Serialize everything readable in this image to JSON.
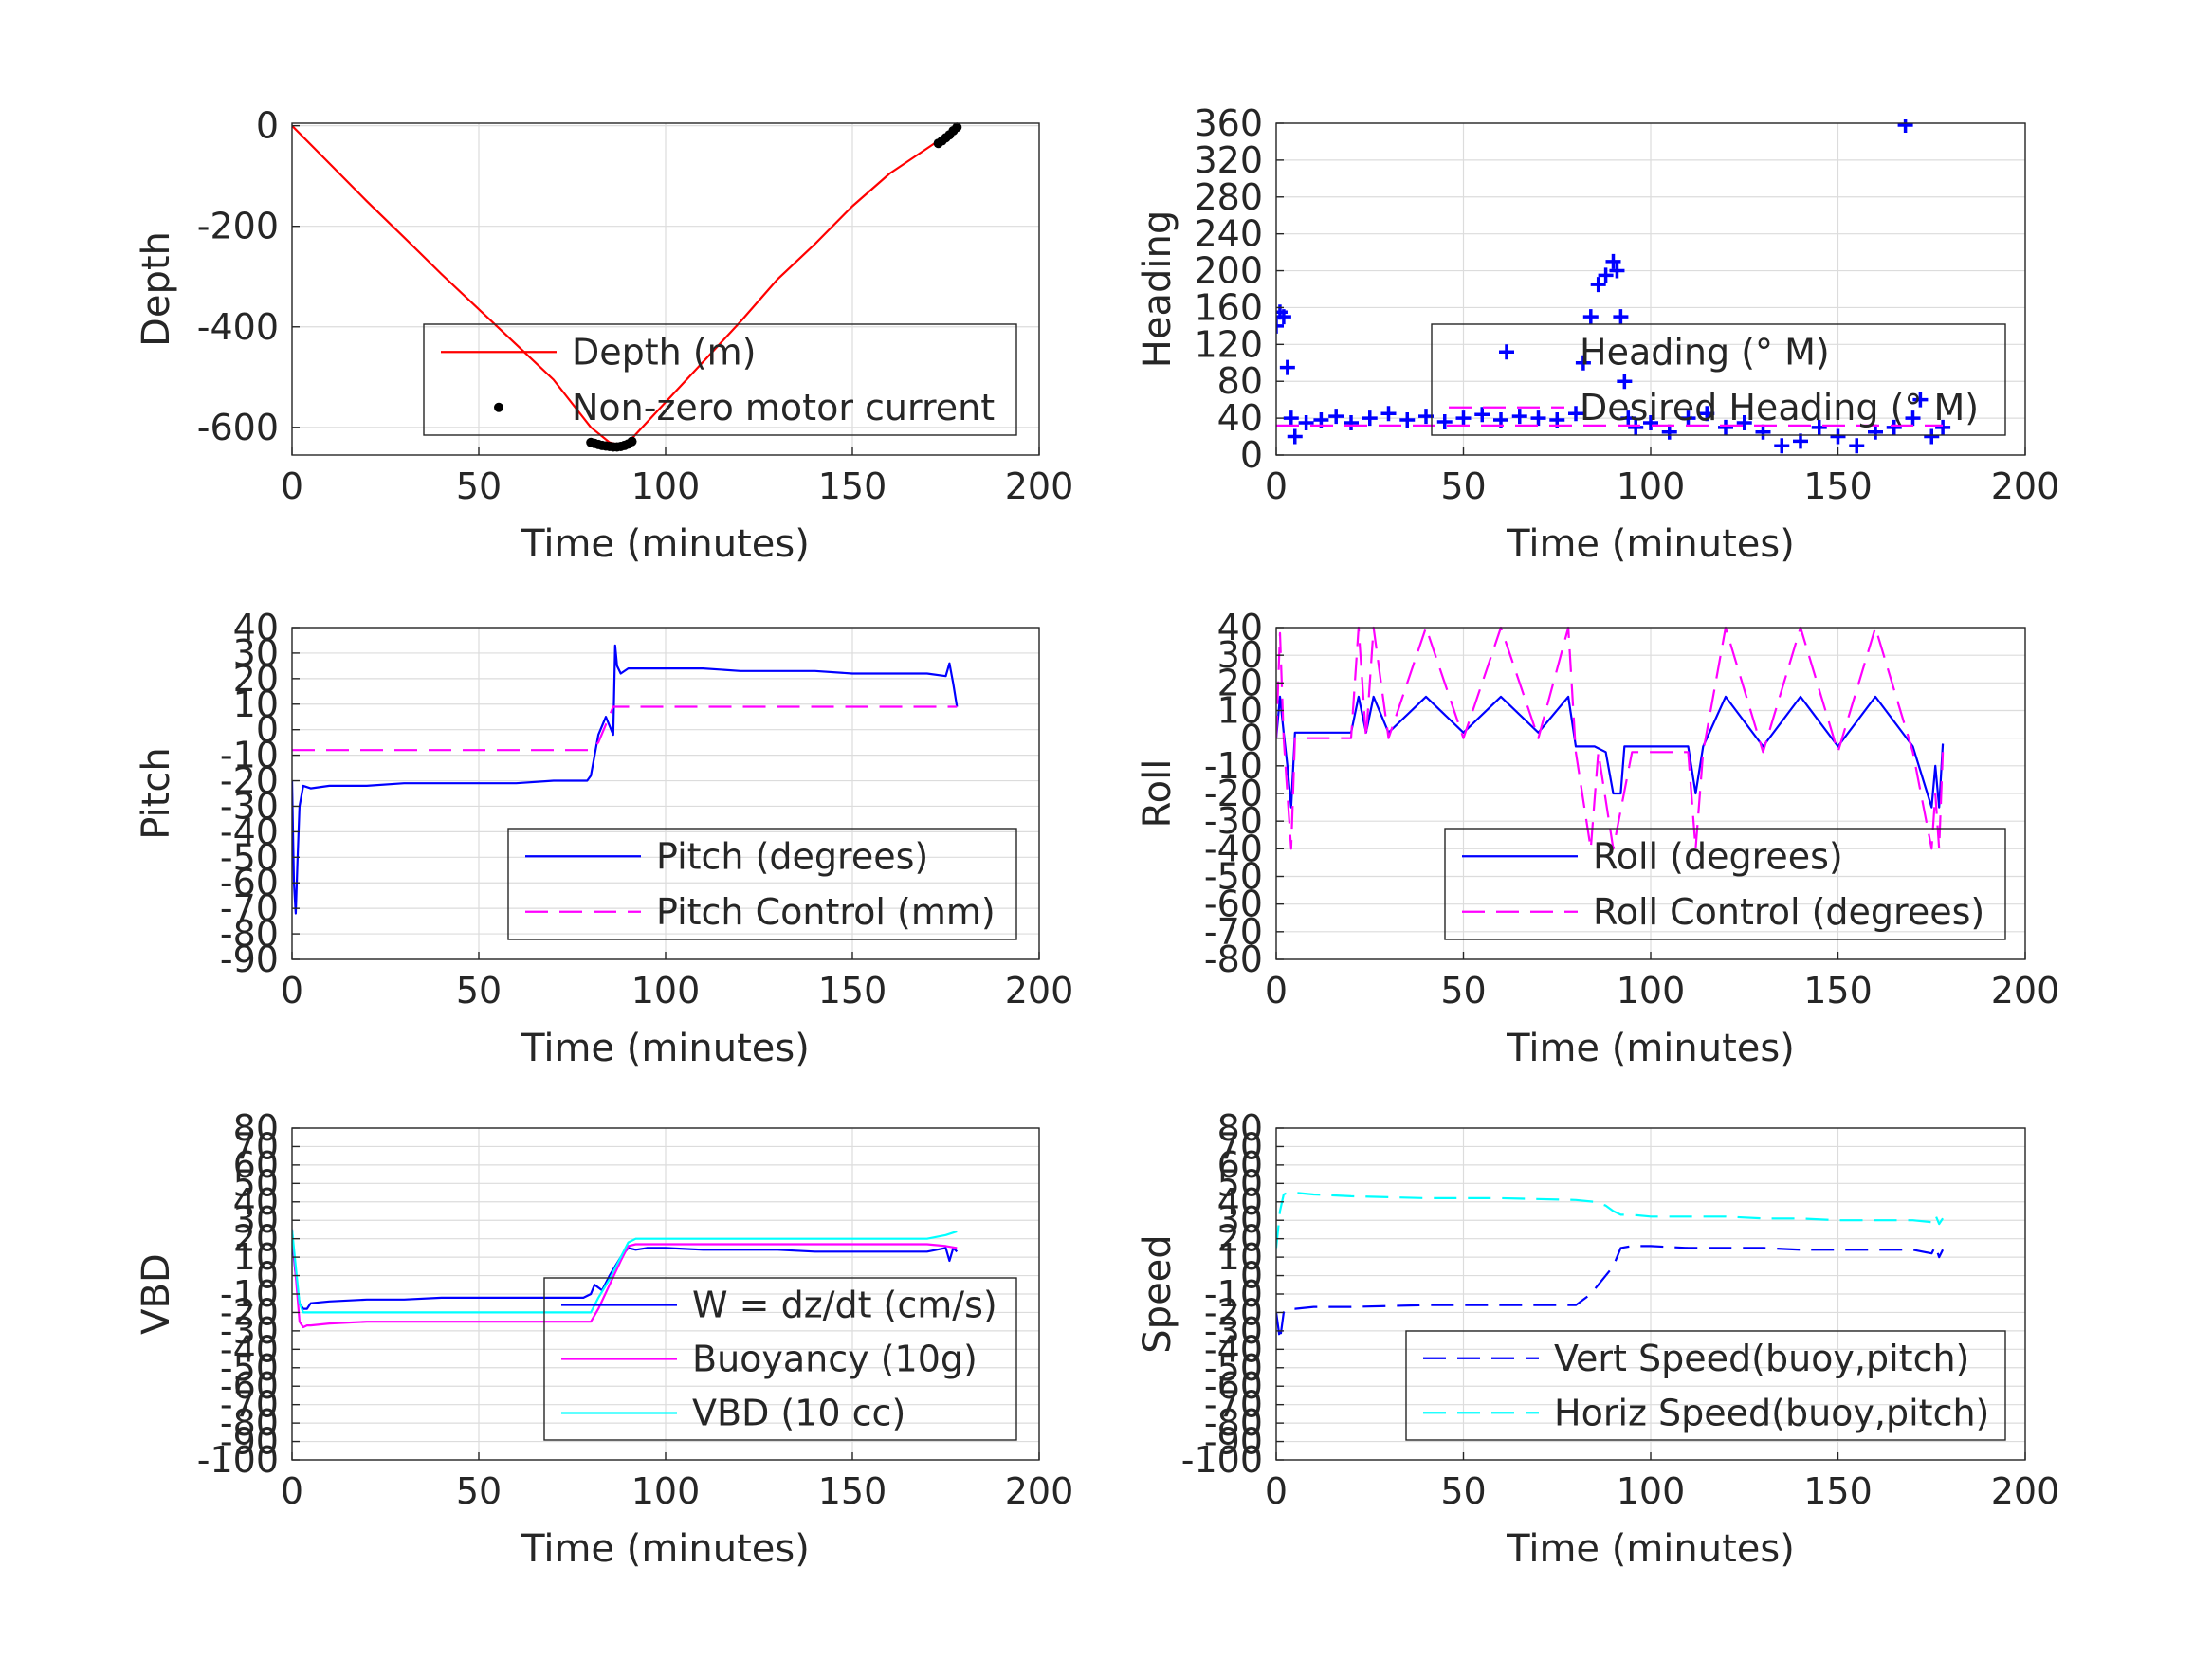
{
  "chart_data": [
    {
      "type": "line",
      "xlabel": "Time (minutes)",
      "ylabel": "Depth",
      "xlim": [
        0,
        200
      ],
      "ylim": [
        -655,
        5
      ],
      "xticks": [
        0,
        50,
        100,
        150,
        200
      ],
      "yticks": [
        0,
        -200,
        -400,
        -600
      ],
      "xtick_labels": [
        "0",
        "50",
        "100",
        "150",
        "200"
      ],
      "ytick_labels": [
        "0",
        "-200",
        "-400",
        "-600"
      ],
      "grid": true,
      "legend": {
        "placement": "lower-right",
        "entries": [
          "Depth (m)",
          "Non-zero motor current"
        ]
      },
      "series": [
        {
          "name": "Depth (m)",
          "style": "line",
          "color": "#ff0000",
          "x": [
            0,
            10,
            20,
            30,
            40,
            50,
            60,
            70,
            80,
            85,
            88,
            90,
            95,
            100,
            110,
            120,
            130,
            140,
            150,
            160,
            170,
            176,
            178
          ],
          "y": [
            0,
            -75,
            -150,
            -222,
            -295,
            -365,
            -435,
            -505,
            -600,
            -630,
            -635,
            -630,
            -590,
            -550,
            -470,
            -390,
            -305,
            -235,
            -160,
            -95,
            -45,
            -15,
            0
          ]
        },
        {
          "name": "Non-zero motor current",
          "style": "dots",
          "color": "#000000",
          "x": [
            80,
            81,
            82,
            83,
            84,
            85,
            86,
            87,
            88,
            89,
            90,
            91,
            173,
            174,
            175,
            176,
            177,
            178
          ],
          "y": [
            -630,
            -632,
            -634,
            -636,
            -637,
            -638,
            -639,
            -639,
            -638,
            -636,
            -633,
            -628,
            -35,
            -30,
            -24,
            -18,
            -10,
            -3
          ]
        }
      ]
    },
    {
      "type": "scatter",
      "xlabel": "Time (minutes)",
      "ylabel": "Heading",
      "xlim": [
        0,
        200
      ],
      "ylim": [
        0,
        360
      ],
      "xticks": [
        0,
        50,
        100,
        150,
        200
      ],
      "yticks": [
        0,
        40,
        80,
        120,
        160,
        200,
        240,
        280,
        320,
        360
      ],
      "xtick_labels": [
        "0",
        "50",
        "100",
        "150",
        "200"
      ],
      "ytick_labels": [
        "0",
        "40",
        "80",
        "120",
        "160",
        "200",
        "240",
        "280",
        "320",
        "360"
      ],
      "grid": true,
      "legend": {
        "placement": "lower-right",
        "entries": [
          "Heading (° M)",
          "Desired Heading (° M)"
        ]
      },
      "series": [
        {
          "name": "Heading (° M)",
          "style": "plus",
          "color": "#0000ff",
          "x": [
            0,
            1,
            2,
            3,
            4,
            5,
            8,
            12,
            16,
            20,
            25,
            30,
            35,
            40,
            45,
            50,
            55,
            60,
            65,
            70,
            75,
            80,
            82,
            84,
            86,
            88,
            90,
            91,
            92,
            93,
            94,
            96,
            100,
            105,
            110,
            115,
            120,
            125,
            130,
            135,
            140,
            145,
            150,
            155,
            160,
            165,
            168,
            170,
            172,
            175,
            178
          ],
          "y": [
            140,
            155,
            150,
            95,
            40,
            20,
            35,
            38,
            42,
            35,
            40,
            45,
            38,
            42,
            36,
            40,
            44,
            38,
            42,
            40,
            38,
            45,
            100,
            150,
            185,
            195,
            210,
            200,
            150,
            80,
            40,
            30,
            35,
            25,
            40,
            45,
            30,
            35,
            25,
            10,
            15,
            30,
            20,
            10,
            25,
            30,
            358,
            40,
            60,
            20,
            30
          ]
        },
        {
          "name": "Desired Heading (° M)",
          "style": "dashed",
          "color": "#ff00ff",
          "x": [
            0,
            178
          ],
          "y": [
            32,
            32
          ]
        }
      ]
    },
    {
      "type": "line",
      "xlabel": "Time (minutes)",
      "ylabel": "Pitch",
      "xlim": [
        0,
        200
      ],
      "ylim": [
        -90,
        40
      ],
      "xticks": [
        0,
        50,
        100,
        150,
        200
      ],
      "yticks": [
        40,
        30,
        20,
        10,
        0,
        -10,
        -20,
        -30,
        -40,
        -50,
        -60,
        -70,
        -80,
        -90
      ],
      "xtick_labels": [
        "0",
        "50",
        "100",
        "150",
        "200"
      ],
      "ytick_labels": [
        "40",
        "30",
        "20",
        "10",
        "0",
        "-10",
        "-20",
        "-30",
        "-40",
        "-50",
        "-60",
        "-70",
        "-80",
        "-90"
      ],
      "grid": true,
      "legend": {
        "placement": "lower-right",
        "entries": [
          "Pitch (degrees)",
          "Pitch Control (mm)"
        ]
      },
      "series": [
        {
          "name": "Pitch (degrees)",
          "style": "line",
          "color": "#0000ff",
          "x": [
            0,
            0.5,
            1,
            1.5,
            2,
            3,
            5,
            10,
            20,
            30,
            40,
            50,
            60,
            70,
            79,
            80,
            82,
            84,
            86,
            86.5,
            87,
            88,
            90,
            95,
            100,
            110,
            120,
            130,
            140,
            150,
            160,
            170,
            175,
            176,
            177,
            178
          ],
          "y": [
            -20,
            -60,
            -72,
            -50,
            -30,
            -22,
            -23,
            -22,
            -22,
            -21,
            -21,
            -21,
            -21,
            -20,
            -20,
            -18,
            -2,
            5,
            -2,
            33,
            25,
            22,
            24,
            24,
            24,
            24,
            23,
            23,
            23,
            22,
            22,
            22,
            21,
            26,
            18,
            9
          ]
        },
        {
          "name": "Pitch Control (mm)",
          "style": "dashed",
          "color": "#ff00ff",
          "x": [
            0,
            80,
            82,
            84,
            86,
            87,
            88,
            178
          ],
          "y": [
            -8,
            -8,
            -5,
            2,
            9,
            9,
            9,
            9
          ]
        }
      ]
    },
    {
      "type": "line",
      "xlabel": "Time (minutes)",
      "ylabel": "Roll",
      "xlim": [
        0,
        200
      ],
      "ylim": [
        -80,
        40
      ],
      "xticks": [
        0,
        50,
        100,
        150,
        200
      ],
      "yticks": [
        40,
        30,
        20,
        10,
        0,
        -10,
        -20,
        -30,
        -40,
        -50,
        -60,
        -70,
        -80
      ],
      "xtick_labels": [
        "0",
        "50",
        "100",
        "150",
        "200"
      ],
      "ytick_labels": [
        "40",
        "30",
        "20",
        "10",
        "0",
        "-10",
        "-20",
        "-30",
        "-40",
        "-50",
        "-60",
        "-70",
        "-80"
      ],
      "grid": true,
      "legend": {
        "placement": "lower-right",
        "entries": [
          "Roll (degrees)",
          "Roll Control (degrees)"
        ]
      },
      "series": [
        {
          "name": "Roll (degrees)",
          "style": "line",
          "color": "#0000ff",
          "x": [
            0,
            1,
            2,
            3,
            4,
            5,
            10,
            20,
            22,
            24,
            26,
            30,
            40,
            50,
            60,
            70,
            78,
            80,
            85,
            88,
            90,
            92,
            93,
            95,
            100,
            110,
            112,
            114,
            120,
            130,
            140,
            150,
            160,
            170,
            175,
            176,
            177,
            178
          ],
          "y": [
            0,
            15,
            2,
            -10,
            -25,
            2,
            2,
            2,
            15,
            2,
            15,
            2,
            15,
            2,
            15,
            2,
            15,
            -3,
            -3,
            -5,
            -20,
            -20,
            -3,
            -3,
            -3,
            -3,
            -20,
            -3,
            15,
            -3,
            15,
            -3,
            15,
            -3,
            -25,
            -10,
            -25,
            -2
          ]
        },
        {
          "name": "Roll Control (degrees)",
          "style": "dashed",
          "color": "#ff00ff",
          "x": [
            0,
            1,
            2,
            3,
            4,
            5,
            10,
            20,
            22,
            24,
            26,
            30,
            40,
            50,
            60,
            70,
            78,
            80,
            84,
            86,
            90,
            95,
            100,
            110,
            112,
            114,
            120,
            130,
            140,
            150,
            160,
            170,
            175,
            176,
            177,
            178
          ],
          "y": [
            0,
            38,
            0,
            -20,
            -40,
            0,
            0,
            0,
            40,
            0,
            40,
            0,
            40,
            0,
            40,
            0,
            40,
            -5,
            -40,
            -5,
            -40,
            -5,
            -5,
            -5,
            -40,
            -5,
            40,
            -5,
            40,
            -5,
            40,
            -5,
            -40,
            -20,
            -40,
            -5
          ]
        }
      ]
    },
    {
      "type": "line",
      "xlabel": "Time (minutes)",
      "ylabel": "VBD",
      "xlim": [
        0,
        200
      ],
      "ylim": [
        -100,
        80
      ],
      "xticks": [
        0,
        50,
        100,
        150,
        200
      ],
      "yticks": [
        80,
        70,
        60,
        50,
        40,
        30,
        20,
        10,
        0,
        -10,
        -20,
        -30,
        -40,
        -50,
        -60,
        -70,
        -80,
        -90,
        -100
      ],
      "xtick_labels": [
        "0",
        "50",
        "100",
        "150",
        "200"
      ],
      "ytick_labels": [
        "80",
        "70",
        "60",
        "50",
        "40",
        "30",
        "20",
        "10",
        "0",
        "-10",
        "-20",
        "-30",
        "-40",
        "-50",
        "-60",
        "-70",
        "-80",
        "-90",
        "-100"
      ],
      "grid": true,
      "legend": {
        "placement": "lower-right",
        "entries": [
          "W = dz/dt (cm/s)",
          "Buoyancy (10g)",
          "VBD (10 cc)"
        ]
      },
      "series": [
        {
          "name": "W = dz/dt (cm/s)",
          "style": "line",
          "color": "#0000ff",
          "x": [
            0,
            1,
            2,
            3,
            4,
            5,
            10,
            20,
            30,
            40,
            50,
            60,
            70,
            78,
            80,
            81,
            83,
            85,
            88,
            90,
            92,
            95,
            100,
            110,
            120,
            130,
            140,
            150,
            160,
            170,
            175,
            176,
            177,
            178
          ],
          "y": [
            20,
            0,
            -15,
            -18,
            -18,
            -15,
            -14,
            -13,
            -13,
            -12,
            -12,
            -12,
            -12,
            -12,
            -10,
            -5,
            -8,
            0,
            10,
            15,
            14,
            15,
            15,
            14,
            14,
            14,
            13,
            13,
            13,
            13,
            15,
            8,
            15,
            13
          ]
        },
        {
          "name": "Buoyancy (10g)",
          "style": "line",
          "color": "#ff00ff",
          "x": [
            0,
            1,
            2,
            3,
            4,
            5,
            10,
            20,
            30,
            40,
            50,
            60,
            70,
            80,
            82,
            85,
            88,
            90,
            92,
            95,
            100,
            120,
            140,
            160,
            170,
            175,
            178
          ],
          "y": [
            25,
            0,
            -25,
            -28,
            -27,
            -27,
            -26,
            -25,
            -25,
            -25,
            -25,
            -25,
            -25,
            -25,
            -18,
            -5,
            8,
            16,
            17,
            17,
            17,
            17,
            17,
            17,
            17,
            16,
            15
          ]
        },
        {
          "name": "VBD (10 cc)",
          "style": "line",
          "color": "#00ffff",
          "x": [
            0,
            1,
            2,
            3,
            5,
            10,
            20,
            40,
            60,
            78,
            80,
            82,
            85,
            88,
            90,
            92,
            95,
            100,
            120,
            140,
            160,
            170,
            175,
            178
          ],
          "y": [
            25,
            5,
            -15,
            -20,
            -20,
            -20,
            -20,
            -20,
            -20,
            -20,
            -20,
            -12,
            -2,
            10,
            18,
            20,
            20,
            20,
            20,
            20,
            20,
            20,
            22,
            24
          ]
        }
      ]
    },
    {
      "type": "line",
      "xlabel": "Time (minutes)",
      "ylabel": "Speed",
      "xlim": [
        0,
        200
      ],
      "ylim": [
        -100,
        80
      ],
      "xticks": [
        0,
        50,
        100,
        150,
        200
      ],
      "yticks": [
        80,
        70,
        60,
        50,
        40,
        30,
        20,
        10,
        0,
        -10,
        -20,
        -30,
        -40,
        -50,
        -60,
        -70,
        -80,
        -90,
        -100
      ],
      "xtick_labels": [
        "0",
        "50",
        "100",
        "150",
        "200"
      ],
      "ytick_labels": [
        "80",
        "70",
        "60",
        "50",
        "40",
        "30",
        "20",
        "10",
        "0",
        "-10",
        "-20",
        "-30",
        "-40",
        "-50",
        "-60",
        "-70",
        "-80",
        "-90",
        "-100"
      ],
      "grid": true,
      "legend": {
        "placement": "lower-right",
        "entries": [
          "Vert Speed(buoy,pitch)",
          "Horiz Speed(buoy,pitch)"
        ]
      },
      "series": [
        {
          "name": "Vert Speed(buoy,pitch)",
          "style": "dashed",
          "color": "#0000ff",
          "x": [
            0,
            1,
            2,
            3,
            5,
            10,
            20,
            40,
            60,
            70,
            80,
            84,
            88,
            90,
            92,
            95,
            100,
            110,
            120,
            130,
            140,
            150,
            160,
            170,
            175,
            176,
            177,
            178
          ],
          "y": [
            -20,
            -35,
            -20,
            -18,
            -18,
            -17,
            -17,
            -16,
            -16,
            -16,
            -16,
            -10,
            0,
            5,
            15,
            16,
            16,
            15,
            15,
            15,
            14,
            14,
            14,
            14,
            12,
            16,
            10,
            14
          ]
        },
        {
          "name": "Horiz Speed(buoy,pitch)",
          "style": "dashed",
          "color": "#00ffff",
          "x": [
            0,
            1,
            2,
            3,
            5,
            10,
            20,
            40,
            60,
            80,
            85,
            88,
            90,
            92,
            95,
            100,
            110,
            120,
            130,
            140,
            150,
            160,
            170,
            175,
            176,
            177,
            178
          ],
          "y": [
            15,
            35,
            44,
            45,
            45,
            44,
            43,
            42,
            42,
            41,
            40,
            38,
            35,
            33,
            33,
            32,
            32,
            32,
            31,
            31,
            30,
            30,
            30,
            29,
            33,
            28,
            31
          ]
        }
      ]
    }
  ]
}
